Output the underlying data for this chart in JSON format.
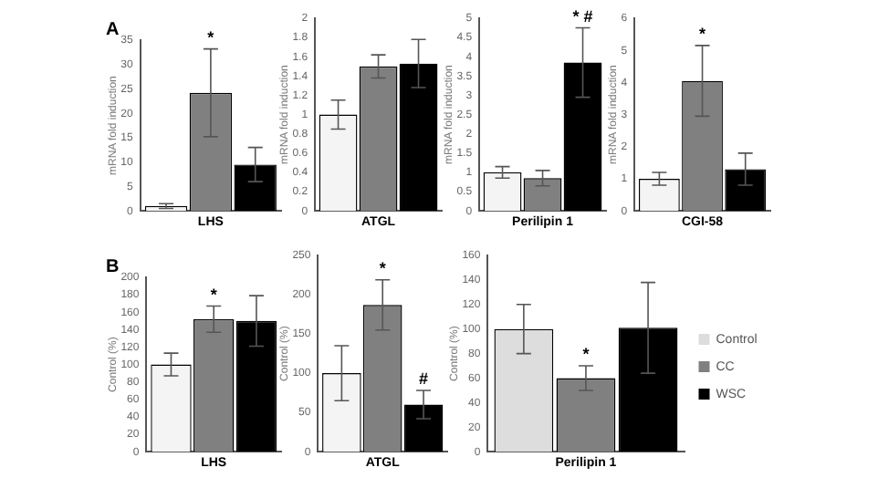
{
  "chart_data": [
    {
      "type": "bar",
      "title": "A",
      "xlabel": "LHS",
      "ylabel": "mRNA fold induction",
      "categories": [
        null
      ],
      "ylim": [
        0,
        35
      ],
      "yticks": [
        0,
        5,
        10,
        15,
        20,
        25,
        30,
        35
      ],
      "annotations": [
        {
          "text": "*",
          "y": 33.2
        }
      ],
      "series": [
        {
          "color": "#f4f4f4",
          "values": [
            1
          ],
          "errors": [
            0.5
          ]
        },
        {
          "color": "#808080",
          "values": [
            24.2
          ],
          "errors": [
            9
          ]
        },
        {
          "color": "#000000",
          "values": [
            9.5
          ],
          "errors": [
            3.5
          ]
        }
      ]
    },
    {
      "type": "bar",
      "xlabel": "ATGL",
      "ylabel": "mRNA fold induction",
      "categories": [
        null
      ],
      "ylim": [
        0,
        2
      ],
      "yticks": [
        0,
        0.2,
        0.4,
        0.6,
        0.8,
        1,
        1.2,
        1.4,
        1.6,
        1.8,
        2
      ],
      "series": [
        {
          "color": "#f4f4f4",
          "values": [
            1
          ],
          "errors": [
            0.15
          ]
        },
        {
          "color": "#808080",
          "values": [
            1.5
          ],
          "errors": [
            0.12
          ]
        },
        {
          "color": "#000000",
          "values": [
            1.53
          ],
          "errors": [
            0.25
          ]
        }
      ]
    },
    {
      "type": "bar",
      "xlabel": "Perilipin 1",
      "ylabel": "mRNA fold induction",
      "categories": [
        null
      ],
      "ylim": [
        0,
        5
      ],
      "yticks": [
        0,
        0.5,
        1,
        1.5,
        2,
        2.5,
        3,
        3.5,
        4,
        4.5,
        5
      ],
      "annotations": [
        {
          "text": "* #",
          "y": 4.75
        }
      ],
      "series": [
        {
          "color": "#f4f4f4",
          "values": [
            1
          ],
          "errors": [
            0.15
          ]
        },
        {
          "color": "#808080",
          "values": [
            0.85
          ],
          "errors": [
            0.2
          ]
        },
        {
          "color": "#000000",
          "values": [
            3.85
          ],
          "errors": [
            0.9
          ]
        }
      ]
    },
    {
      "type": "bar",
      "xlabel": "CGI-58",
      "ylabel": "mRNA fold induction",
      "categories": [
        null
      ],
      "ylim": [
        0,
        6
      ],
      "yticks": [
        0,
        1,
        2,
        3,
        4,
        5,
        6
      ],
      "annotations": [
        {
          "text": "*",
          "y": 5.15
        }
      ],
      "series": [
        {
          "color": "#f4f4f4",
          "values": [
            1
          ],
          "errors": [
            0.2
          ]
        },
        {
          "color": "#808080",
          "values": [
            4.05
          ],
          "errors": [
            1.1
          ]
        },
        {
          "color": "#000000",
          "values": [
            1.3
          ],
          "errors": [
            0.5
          ]
        }
      ]
    },
    {
      "type": "bar",
      "title": "B",
      "xlabel": "LHS",
      "ylabel": "Control (%)",
      "categories": [
        null
      ],
      "ylim": [
        0,
        200
      ],
      "yticks": [
        0,
        20,
        40,
        60,
        80,
        100,
        120,
        140,
        160,
        180,
        200
      ],
      "annotations": [
        {
          "text": "*",
          "y": 167
        }
      ],
      "series": [
        {
          "color": "#f4f4f4",
          "values": [
            100
          ],
          "errors": [
            13
          ]
        },
        {
          "color": "#808080",
          "values": [
            152
          ],
          "errors": [
            15
          ]
        },
        {
          "color": "#000000",
          "values": [
            150
          ],
          "errors": [
            29
          ]
        }
      ]
    },
    {
      "type": "bar",
      "xlabel": "ATGL",
      "ylabel": "Control (%)",
      "categories": [
        null
      ],
      "ylim": [
        0,
        250
      ],
      "yticks": [
        0,
        50,
        100,
        150,
        200,
        250
      ],
      "annotations": [
        {
          "text": "*",
          "y": 219
        },
        {
          "text": "#",
          "y": 78
        }
      ],
      "series": [
        {
          "color": "#f4f4f4",
          "values": [
            100
          ],
          "errors": [
            35
          ]
        },
        {
          "color": "#808080",
          "values": [
            187
          ],
          "errors": [
            32
          ]
        },
        {
          "color": "#000000",
          "values": [
            60
          ],
          "errors": [
            18
          ]
        }
      ]
    },
    {
      "type": "bar",
      "xlabel": "Perilipin 1",
      "ylabel": "Control (%)",
      "categories": [
        null
      ],
      "ylim": [
        0,
        160
      ],
      "yticks": [
        0,
        20,
        40,
        60,
        80,
        100,
        120,
        140,
        160
      ],
      "annotations": [
        {
          "text": "*",
          "y": 70
        }
      ],
      "legend": "right",
      "series": [
        {
          "name": "Control",
          "color": "#dddddd",
          "values": [
            100
          ],
          "errors": [
            20
          ]
        },
        {
          "name": "CC",
          "color": "#808080",
          "values": [
            60
          ],
          "errors": [
            10
          ]
        },
        {
          "name": "WSC",
          "color": "#000000",
          "values": [
            101
          ],
          "errors": [
            37
          ]
        }
      ]
    }
  ]
}
